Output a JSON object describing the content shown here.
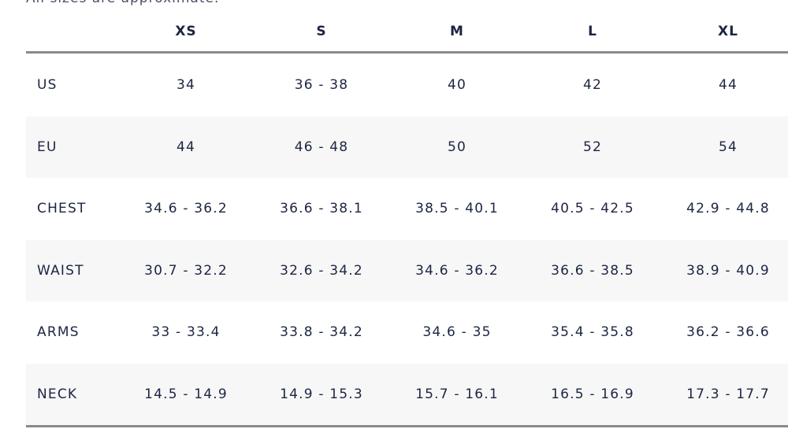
{
  "note": "All sizes are approximate.",
  "table": {
    "columns": [
      "XS",
      "S",
      "M",
      "L",
      "XL"
    ],
    "rows": [
      {
        "label": "US",
        "values": [
          "34",
          "36 - 38",
          "40",
          "42",
          "44"
        ]
      },
      {
        "label": "EU",
        "values": [
          "44",
          "46 - 48",
          "50",
          "52",
          "54"
        ]
      },
      {
        "label": "CHEST",
        "values": [
          "34.6 - 36.2",
          "36.6 - 38.1",
          "38.5 - 40.1",
          "40.5 - 42.5",
          "42.9 - 44.8"
        ]
      },
      {
        "label": "WAIST",
        "values": [
          "30.7 - 32.2",
          "32.6 - 34.2",
          "34.6 - 36.2",
          "36.6 - 38.5",
          "38.9 - 40.9"
        ]
      },
      {
        "label": "ARMS",
        "values": [
          "33 - 33.4",
          "33.8 - 34.2",
          "34.6 - 35",
          "35.4 - 35.8",
          "36.2 - 36.6"
        ]
      },
      {
        "label": "NECK",
        "values": [
          "14.5 - 14.9",
          "14.9 - 15.3",
          "15.7 - 16.1",
          "16.5 - 16.9",
          "17.3 - 17.7"
        ]
      }
    ]
  }
}
